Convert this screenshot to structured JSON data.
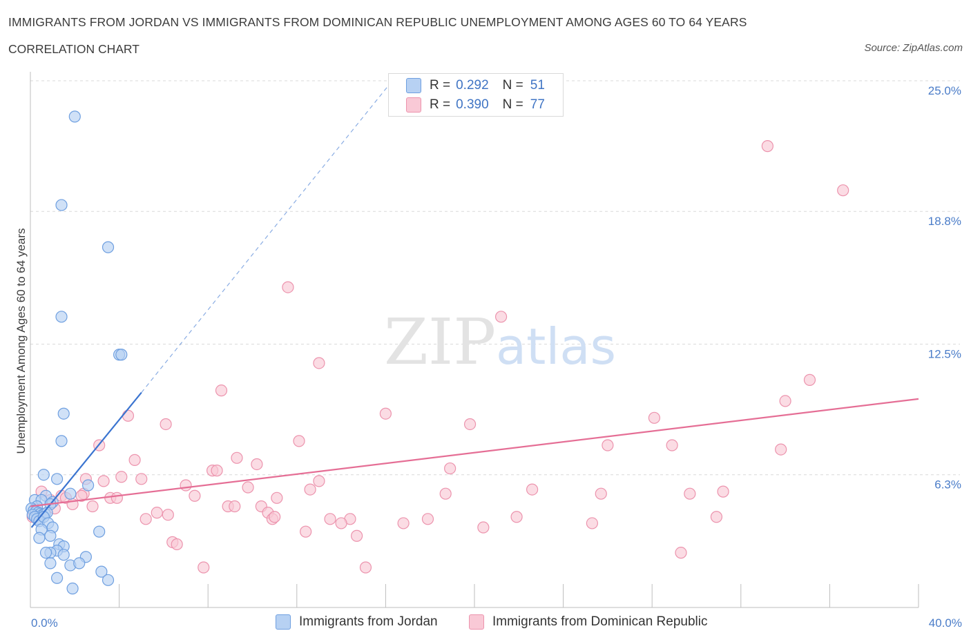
{
  "header": {
    "title": "IMMIGRANTS FROM JORDAN VS IMMIGRANTS FROM DOMINICAN REPUBLIC UNEMPLOYMENT AMONG AGES 60 TO 64 YEARS",
    "subtitle": "CORRELATION CHART",
    "source": "Source: ZipAtlas.com"
  },
  "legend": {
    "jordan": {
      "r_label": "R =",
      "r_value": "0.292",
      "n_label": "N =",
      "n_value": "51"
    },
    "dominican": {
      "r_label": "R =",
      "r_value": "0.390",
      "n_label": "N =",
      "n_value": "77"
    }
  },
  "watermark": {
    "zip": "ZIP",
    "atlas": "atlas"
  },
  "colors": {
    "jordan_fill": "#b7d1f3",
    "jordan_stroke": "#6e9fe0",
    "jordan_line": "#3a74d0",
    "dominican_fill": "#f9c9d6",
    "dominican_stroke": "#ec93ad",
    "dominican_line": "#e56e95",
    "tick_label": "#4a7cc8",
    "grid": "#d9d9d9"
  },
  "chart_data": {
    "type": "scatter",
    "title": "IMMIGRANTS FROM JORDAN VS IMMIGRANTS FROM DOMINICAN REPUBLIC UNEMPLOYMENT AMONG AGES 60 TO 64 YEARS",
    "xlabel": "",
    "ylabel": "Unemployment Among Ages 60 to 64 years",
    "xlim": [
      0,
      40
    ],
    "ylim": [
      0,
      25.0
    ],
    "x_tick_labels": [
      "0.0%",
      "40.0%"
    ],
    "y_ticks": [
      6.3,
      12.5,
      18.8,
      25.0
    ],
    "y_tick_labels": [
      "6.3%",
      "12.5%",
      "18.8%",
      "25.0%"
    ],
    "grid": true,
    "legend_position": "top-center",
    "series": [
      {
        "name": "Immigrants from Jordan",
        "r": 0.292,
        "n": 51,
        "trend": {
          "x0": 0.05,
          "y0": 3.8,
          "x1": 5.0,
          "y1": 10.2,
          "dashed_to_x": 16.3,
          "dashed_to_y": 25.0
        },
        "points": [
          [
            2.0,
            23.3
          ],
          [
            1.4,
            19.1
          ],
          [
            3.5,
            17.1
          ],
          [
            1.4,
            13.8
          ],
          [
            4.0,
            12.0
          ],
          [
            4.1,
            12.0
          ],
          [
            1.5,
            9.2
          ],
          [
            1.4,
            7.9
          ],
          [
            0.6,
            6.3
          ],
          [
            1.2,
            6.1
          ],
          [
            2.6,
            5.8
          ],
          [
            1.8,
            5.4
          ],
          [
            0.7,
            5.3
          ],
          [
            0.2,
            5.1
          ],
          [
            0.5,
            5.1
          ],
          [
            1.0,
            5.0
          ],
          [
            0.9,
            4.9
          ],
          [
            0.3,
            4.8
          ],
          [
            0.05,
            4.7
          ],
          [
            0.15,
            4.6
          ],
          [
            0.25,
            4.55
          ],
          [
            0.35,
            4.5
          ],
          [
            0.45,
            4.45
          ],
          [
            0.55,
            4.4
          ],
          [
            0.65,
            4.45
          ],
          [
            0.75,
            4.5
          ],
          [
            0.1,
            4.4
          ],
          [
            0.2,
            4.3
          ],
          [
            0.3,
            4.2
          ],
          [
            0.4,
            4.1
          ],
          [
            0.6,
            4.3
          ],
          [
            0.8,
            4.0
          ],
          [
            1.0,
            3.8
          ],
          [
            0.5,
            3.7
          ],
          [
            0.9,
            3.4
          ],
          [
            3.1,
            3.6
          ],
          [
            0.4,
            3.3
          ],
          [
            1.3,
            3.0
          ],
          [
            1.5,
            2.9
          ],
          [
            1.2,
            2.7
          ],
          [
            0.9,
            2.6
          ],
          [
            0.7,
            2.6
          ],
          [
            1.5,
            2.5
          ],
          [
            2.5,
            2.4
          ],
          [
            0.9,
            2.1
          ],
          [
            1.8,
            2.0
          ],
          [
            2.2,
            2.1
          ],
          [
            3.2,
            1.7
          ],
          [
            1.2,
            1.4
          ],
          [
            3.5,
            1.3
          ],
          [
            1.9,
            0.9
          ]
        ]
      },
      {
        "name": "Immigrants from Dominican Republic",
        "r": 0.39,
        "n": 77,
        "trend": {
          "x0": 0.0,
          "y0": 4.8,
          "x1": 40.0,
          "y1": 9.9
        },
        "points": [
          [
            33.2,
            21.9
          ],
          [
            36.6,
            19.8
          ],
          [
            11.6,
            15.2
          ],
          [
            21.2,
            13.8
          ],
          [
            13.0,
            11.6
          ],
          [
            35.1,
            10.8
          ],
          [
            8.6,
            10.3
          ],
          [
            34.0,
            9.8
          ],
          [
            4.4,
            9.1
          ],
          [
            16.0,
            9.2
          ],
          [
            28.1,
            9.0
          ],
          [
            6.1,
            8.7
          ],
          [
            19.8,
            8.7
          ],
          [
            12.1,
            7.9
          ],
          [
            3.1,
            7.7
          ],
          [
            26.0,
            7.7
          ],
          [
            28.9,
            7.7
          ],
          [
            33.8,
            7.5
          ],
          [
            9.3,
            7.1
          ],
          [
            4.7,
            7.0
          ],
          [
            10.2,
            6.8
          ],
          [
            8.2,
            6.5
          ],
          [
            8.4,
            6.5
          ],
          [
            18.9,
            6.6
          ],
          [
            4.1,
            6.2
          ],
          [
            5.0,
            6.1
          ],
          [
            2.5,
            6.1
          ],
          [
            3.3,
            6.0
          ],
          [
            13.0,
            6.0
          ],
          [
            7.0,
            5.8
          ],
          [
            9.8,
            5.7
          ],
          [
            12.6,
            5.6
          ],
          [
            22.6,
            5.6
          ],
          [
            2.4,
            5.4
          ],
          [
            0.5,
            5.5
          ],
          [
            1.4,
            5.3
          ],
          [
            18.7,
            5.4
          ],
          [
            25.7,
            5.4
          ],
          [
            29.7,
            5.4
          ],
          [
            31.2,
            5.5
          ],
          [
            2.3,
            5.3
          ],
          [
            1.6,
            5.2
          ],
          [
            3.6,
            5.2
          ],
          [
            3.9,
            5.2
          ],
          [
            7.4,
            5.3
          ],
          [
            11.1,
            5.2
          ],
          [
            0.9,
            5.1
          ],
          [
            1.9,
            4.9
          ],
          [
            2.8,
            4.8
          ],
          [
            8.9,
            4.8
          ],
          [
            9.2,
            4.8
          ],
          [
            10.4,
            4.8
          ],
          [
            0.3,
            4.7
          ],
          [
            1.1,
            4.7
          ],
          [
            10.7,
            4.5
          ],
          [
            5.7,
            4.5
          ],
          [
            6.2,
            4.4
          ],
          [
            10.9,
            4.2
          ],
          [
            11.0,
            4.3
          ],
          [
            0.1,
            4.3
          ],
          [
            5.2,
            4.2
          ],
          [
            13.5,
            4.2
          ],
          [
            14.4,
            4.2
          ],
          [
            17.9,
            4.2
          ],
          [
            21.9,
            4.3
          ],
          [
            30.9,
            4.3
          ],
          [
            14.0,
            4.0
          ],
          [
            16.8,
            4.0
          ],
          [
            25.3,
            4.0
          ],
          [
            20.4,
            3.8
          ],
          [
            12.4,
            3.6
          ],
          [
            14.7,
            3.4
          ],
          [
            6.4,
            3.1
          ],
          [
            6.6,
            3.0
          ],
          [
            29.3,
            2.6
          ],
          [
            7.8,
            1.9
          ],
          [
            15.1,
            1.9
          ]
        ]
      }
    ]
  },
  "bottom_legend": {
    "jordan_label": "Immigrants from Jordan",
    "dominican_label": "Immigrants from Dominican Republic"
  }
}
